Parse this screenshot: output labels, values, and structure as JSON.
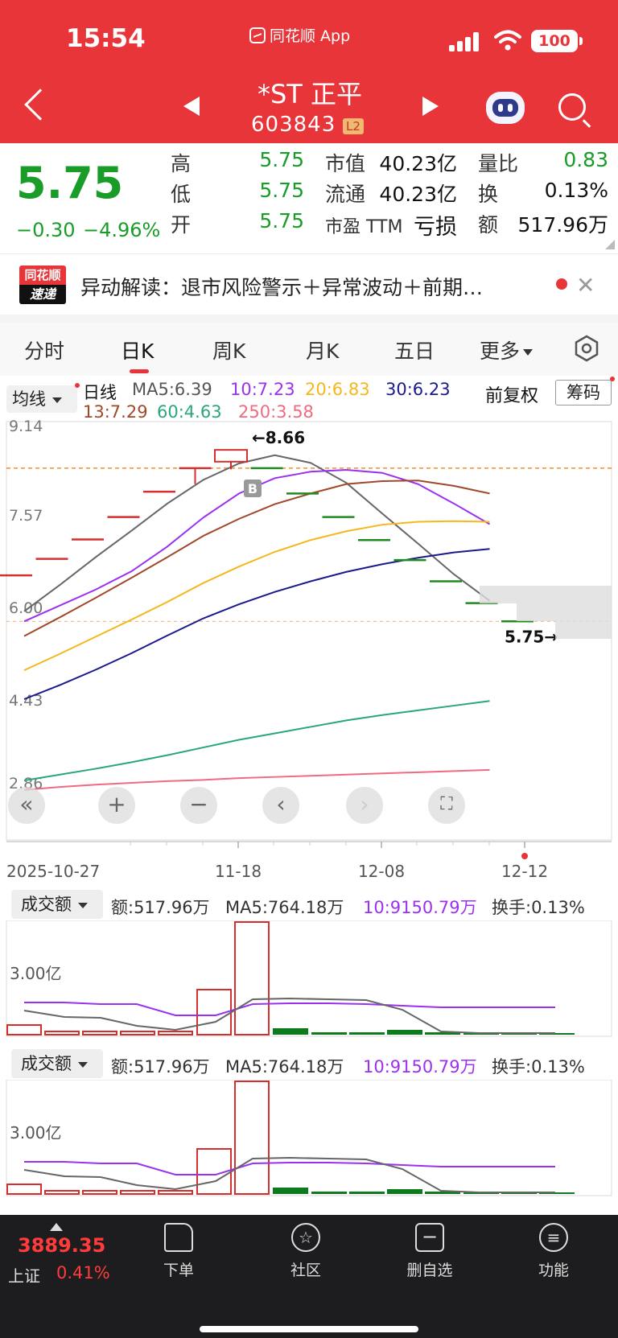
{
  "status": {
    "time": "15:54",
    "app": "同花顺 App",
    "battery": "100"
  },
  "header": {
    "stock_name": "*ST 正平",
    "stock_code": "603843",
    "level": "L2"
  },
  "quote": {
    "price": "5.75",
    "change": "−0.30",
    "change_pct": "−4.96%",
    "high_label": "高",
    "high": "5.75",
    "low_label": "低",
    "low": "5.75",
    "open_label": "开",
    "open": "5.75",
    "mktcap_label": "市值",
    "mktcap": "40.23亿",
    "float_label": "流通",
    "float": "40.23亿",
    "pe_label": "市盈 TTM",
    "pe": "亏损",
    "vol_ratio_label": "量比",
    "vol_ratio": "0.83",
    "turnover_label": "换",
    "turnover": "0.13%",
    "amount_label": "额",
    "amount": "517.96万"
  },
  "news": {
    "logo_top": "同花顺",
    "logo_bottom": "速递",
    "text": "异动解读：退市风险警示＋异常波动＋前期…"
  },
  "tabs": [
    "分时",
    "日K",
    "周K",
    "月K",
    "五日",
    "更多"
  ],
  "ma": {
    "selector": "均线",
    "kind": "日线",
    "ma5": "MA5:6.39",
    "ma10": "10:7.23",
    "ma20": "20:6.83",
    "ma30": "30:6.23",
    "ma13": "13:7.29",
    "ma60": "60:4.63",
    "ma250": "250:3.58",
    "adjust": "前复权",
    "chips": "筹码"
  },
  "chart_data": {
    "type": "candlestick",
    "y_ticks": [
      "9.14",
      "7.57",
      "6.00",
      "4.43",
      "2.86"
    ],
    "ylim": [
      2.86,
      9.14
    ],
    "x_ticks": [
      "2025-10-27",
      "11-18",
      "12-08",
      "12-12"
    ],
    "high_annotation": "←8.66",
    "last_annotation": "5.75→",
    "buy_marker": "B",
    "candles": [
      {
        "open": 6.53,
        "close": 6.53,
        "color": "red"
      },
      {
        "open": 6.81,
        "close": 6.81,
        "color": "red"
      },
      {
        "open": 7.14,
        "close": 7.14,
        "color": "red"
      },
      {
        "open": 7.52,
        "close": 7.52,
        "color": "red"
      },
      {
        "open": 7.95,
        "close": 7.95,
        "color": "red"
      },
      {
        "open": 8.35,
        "close": 8.35,
        "low": 8.08,
        "color": "red"
      },
      {
        "open": 8.46,
        "close": 8.66,
        "low": 8.33,
        "color": "red"
      },
      {
        "open": 8.35,
        "close": 8.35,
        "color": "green"
      },
      {
        "open": 7.92,
        "close": 7.92,
        "color": "green"
      },
      {
        "open": 7.52,
        "close": 7.52,
        "color": "green"
      },
      {
        "open": 7.13,
        "close": 7.13,
        "color": "green"
      },
      {
        "open": 6.79,
        "close": 6.79,
        "color": "green"
      },
      {
        "open": 6.43,
        "close": 6.43,
        "color": "green"
      },
      {
        "open": 6.06,
        "close": 6.06,
        "color": "green"
      },
      {
        "open": 5.75,
        "close": 5.75,
        "color": "green"
      }
    ],
    "ma_lines": [
      {
        "name": "MA5",
        "color": "#666666",
        "values": [
          5.92,
          6.37,
          6.84,
          7.29,
          7.75,
          8.15,
          8.43,
          8.57,
          8.44,
          8.1,
          7.58,
          7.07,
          6.55,
          6.1
        ]
      },
      {
        "name": "MA10",
        "color": "#9b30f0",
        "values": [
          5.75,
          6.02,
          6.29,
          6.6,
          7.02,
          7.51,
          7.92,
          8.18,
          8.29,
          8.32,
          8.27,
          8.08,
          7.75,
          7.4
        ]
      },
      {
        "name": "MA13",
        "color": "#a0482a",
        "values": [
          5.5,
          5.82,
          6.15,
          6.49,
          6.84,
          7.2,
          7.49,
          7.74,
          7.92,
          8.08,
          8.13,
          8.14,
          8.05,
          7.92
        ]
      },
      {
        "name": "MA20",
        "color": "#f5b71c",
        "values": [
          4.92,
          5.2,
          5.49,
          5.78,
          6.08,
          6.4,
          6.68,
          6.93,
          7.13,
          7.28,
          7.39,
          7.44,
          7.45,
          7.44
        ]
      },
      {
        "name": "MA30",
        "color": "#1a1a8c",
        "values": [
          4.43,
          4.67,
          4.93,
          5.21,
          5.51,
          5.8,
          6.04,
          6.25,
          6.43,
          6.59,
          6.72,
          6.83,
          6.92,
          6.98
        ]
      },
      {
        "name": "MA60",
        "color": "#2aa67a",
        "values": [
          3.05,
          3.15,
          3.25,
          3.36,
          3.48,
          3.61,
          3.74,
          3.85,
          3.96,
          4.07,
          4.16,
          4.24,
          4.32,
          4.4
        ]
      },
      {
        "name": "MA250",
        "color": "#f06a80",
        "values": [
          2.89,
          2.94,
          2.98,
          3.01,
          3.04,
          3.06,
          3.09,
          3.11,
          3.13,
          3.15,
          3.17,
          3.19,
          3.21,
          3.23
        ]
      }
    ]
  },
  "volume": {
    "selector": "成交额",
    "amount": "额:517.96万",
    "ma5": "MA5:764.18万",
    "ma10": "10:9150.79万",
    "turnover": "换手:0.13%",
    "y_tick": "3.00亿"
  },
  "bottom": {
    "index_value": "3889.35",
    "index_name": "上证",
    "index_pct": "0.41%",
    "nav": [
      "下单",
      "社区",
      "删自选",
      "功能"
    ]
  }
}
